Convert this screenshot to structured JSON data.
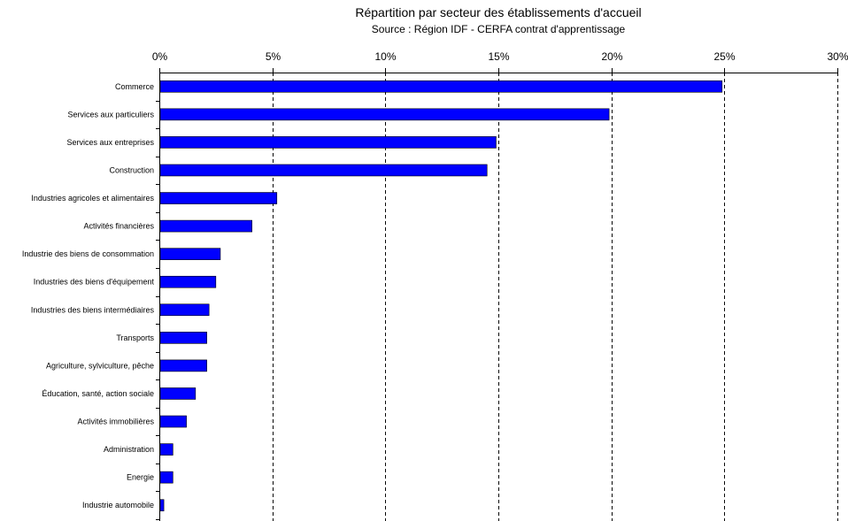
{
  "chart_data": {
    "type": "bar",
    "orientation": "horizontal",
    "title": "Répartition par secteur des établissements d'accueil",
    "subtitle": "Source : Région IDF - CERFA contrat d'apprentissage",
    "categories": [
      "Commerce",
      "Services aux particuliers",
      "Services aux entreprises",
      "Construction",
      "Industries agricoles et alimentaires",
      "Activités financières",
      "Industrie des biens de consommation",
      "Industries des biens d'équipement",
      "Industries des biens intermédiaires",
      "Transports",
      "Agriculture, sylviculture, pêche",
      "Éducation, santé, action sociale",
      "Activités immobilières",
      "Administration",
      "Energie",
      "Industrie automobile"
    ],
    "values": [
      24.9,
      19.9,
      14.9,
      14.5,
      5.2,
      4.1,
      2.7,
      2.5,
      2.2,
      2.1,
      2.1,
      1.6,
      1.2,
      0.6,
      0.6,
      0.2
    ],
    "xlim": [
      0,
      30
    ],
    "xticks": [
      0,
      5,
      10,
      15,
      20,
      25,
      30
    ],
    "tick_suffix": "%",
    "xaxis_position": "top",
    "grid": "vertical dashed",
    "bar_color": "#0000ff"
  }
}
